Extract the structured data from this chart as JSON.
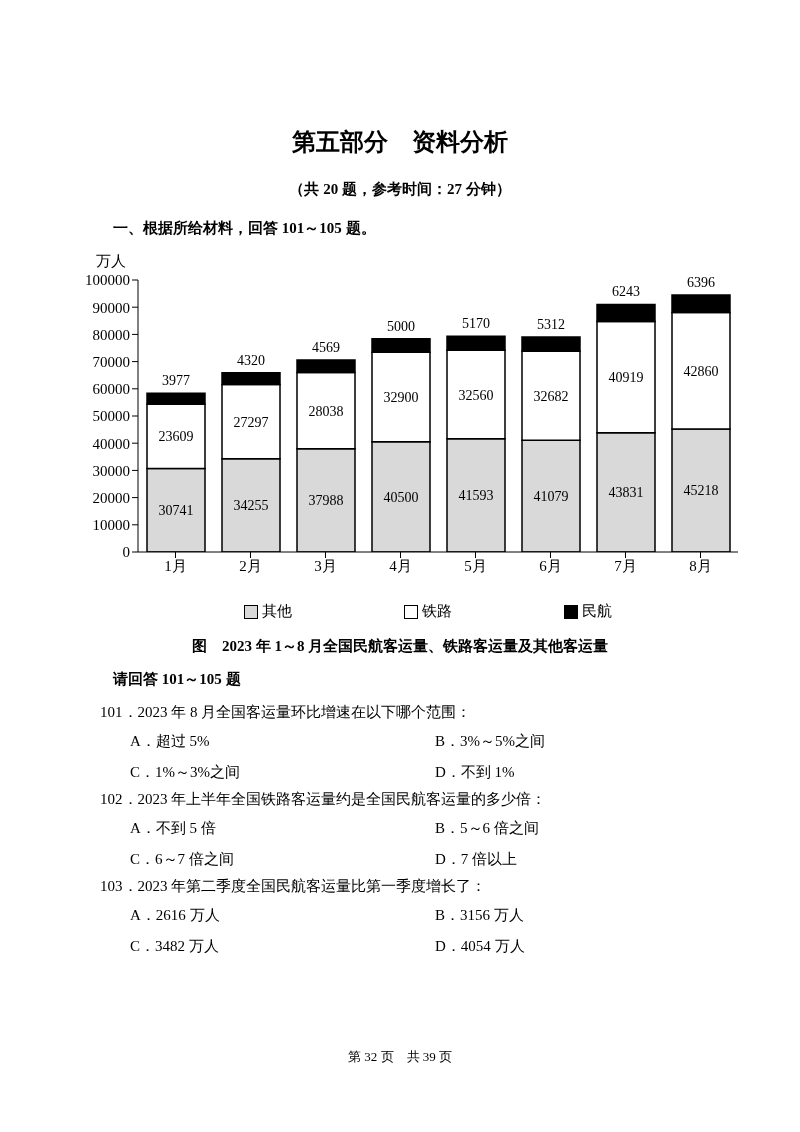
{
  "chart_data": {
    "type": "bar",
    "title": "第五部分　资料分析",
    "subtitle": "（共 20 题，参考时间：27 分钟）",
    "ylabel": "万人",
    "categories": [
      "1月",
      "2月",
      "3月",
      "4月",
      "5月",
      "6月",
      "7月",
      "8月"
    ],
    "series": [
      {
        "name": "其他",
        "color": "#d9d9d9",
        "values": [
          30741,
          34255,
          37988,
          40500,
          41593,
          41079,
          43831,
          45218
        ]
      },
      {
        "name": "铁路",
        "color": "#ffffff",
        "values": [
          23609,
          27297,
          28038,
          32900,
          32560,
          32682,
          40919,
          42860
        ]
      },
      {
        "name": "民航",
        "color": "#000000",
        "values": [
          3977,
          4320,
          4569,
          5000,
          5170,
          5312,
          6243,
          6396
        ]
      }
    ],
    "stacked": true,
    "data_labels": true,
    "legend": "bottom",
    "ylim": [
      0,
      100000
    ],
    "yticks": [
      0,
      10000,
      20000,
      30000,
      40000,
      50000,
      60000,
      70000,
      80000,
      90000,
      100000
    ],
    "annotations": [
      "一、根据所给材料，回答 101～105 题。",
      "图　2023 年 1～8 月全国民航客运量、铁路客运量及其他客运量",
      "请回答 101～105 题",
      "101．2023 年 8 月全国客运量环比增速在以下哪个范围：",
      "A．超过 5%",
      "B．3%～5%之间",
      "C．1%～3%之间",
      "D．不到 1%",
      "102．2023 年上半年全国铁路客运量约是全国民航客运量的多少倍：",
      "A．不到 5 倍",
      "B．5～6 倍之间",
      "C．6～7 倍之间",
      "D．7 倍以上",
      "103．2023 年第二季度全国民航客运量比第一季度增长了：",
      "A．2616 万人",
      "B．3156 万人",
      "C．3482 万人",
      "D．4054 万人",
      "第 32 页　共 39 页"
    ]
  }
}
